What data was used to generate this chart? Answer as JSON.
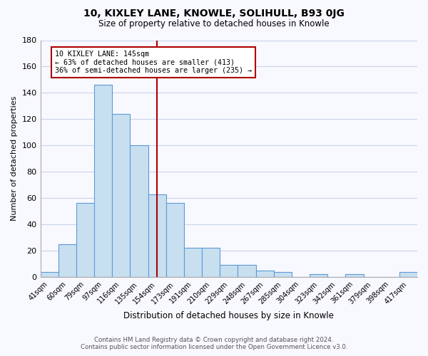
{
  "title": "10, KIXLEY LANE, KNOWLE, SOLIHULL, B93 0JG",
  "subtitle": "Size of property relative to detached houses in Knowle",
  "xlabel": "Distribution of detached houses by size in Knowle",
  "ylabel": "Number of detached properties",
  "bar_labels": [
    "41sqm",
    "60sqm",
    "79sqm",
    "97sqm",
    "116sqm",
    "135sqm",
    "154sqm",
    "173sqm",
    "191sqm",
    "210sqm",
    "229sqm",
    "248sqm",
    "267sqm",
    "285sqm",
    "304sqm",
    "323sqm",
    "342sqm",
    "361sqm",
    "379sqm",
    "398sqm",
    "417sqm"
  ],
  "bar_values": [
    4,
    25,
    56,
    146,
    124,
    100,
    63,
    56,
    22,
    22,
    9,
    9,
    5,
    4,
    0,
    2,
    0,
    2,
    0,
    0,
    4
  ],
  "bar_color": "#c8dff0",
  "bar_edge_color": "#5b9bd5",
  "ylim": [
    0,
    180
  ],
  "yticks": [
    0,
    20,
    40,
    60,
    80,
    100,
    120,
    140,
    160,
    180
  ],
  "vline_x": 6.0,
  "vline_color": "#aa0000",
  "annotation_text": "10 KIXLEY LANE: 145sqm\n← 63% of detached houses are smaller (413)\n36% of semi-detached houses are larger (235) →",
  "annotation_box_color": "#ffffff",
  "annotation_box_edge": "#aa0000",
  "footer_line1": "Contains HM Land Registry data © Crown copyright and database right 2024.",
  "footer_line2": "Contains public sector information licensed under the Open Government Licence v3.0.",
  "background_color": "#f8f8ff",
  "grid_color": "#c8d4e8"
}
